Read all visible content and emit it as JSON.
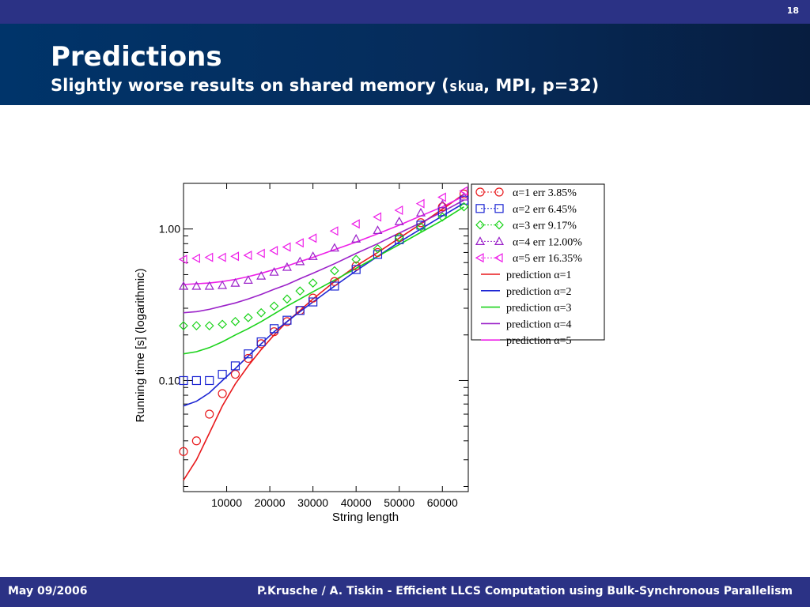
{
  "slide": {
    "number": "18",
    "title": "Predictions",
    "subtitle_prefix": "Slightly worse results on shared memory (",
    "subtitle_code": "skua",
    "subtitle_suffix": ", MPI, p=32)",
    "footer_left": "May 09/2006",
    "footer_right": "P.Krusche / A. Tiskin - Efficient LLCS Computation using Bulk-Synchronous Parallelism",
    "colors": {
      "bar": "#2b3285",
      "header": "#00346a",
      "text": "#ffffff"
    }
  },
  "chart_data": {
    "type": "scatter",
    "title": "",
    "xlabel": "String length",
    "ylabel": "Running time [s] (logarithmic)",
    "x_scale": "linear",
    "y_scale": "log",
    "xlim": [
      0,
      66000
    ],
    "ylim": [
      0.0185,
      2.0
    ],
    "x_ticks": [
      10000,
      20000,
      30000,
      40000,
      50000,
      60000
    ],
    "x_tick_labels": [
      "10000",
      "20000",
      "30000",
      "40000",
      "50000",
      "60000"
    ],
    "y_ticks": [
      0.1,
      1.0
    ],
    "y_tick_labels": [
      "0.10",
      "1.00"
    ],
    "grid": false,
    "legend_position": "top-right",
    "series": [
      {
        "name": "α=1 err 3.85%",
        "kind": "measured",
        "marker": "circle",
        "color": "#e8191c",
        "x": [
          0,
          3000,
          6000,
          9000,
          12000,
          15000,
          18000,
          21000,
          24000,
          27000,
          30000,
          35000,
          40000,
          45000,
          50000,
          55000,
          60000,
          65000
        ],
        "y": [
          0.034,
          0.04,
          0.06,
          0.082,
          0.11,
          0.14,
          0.175,
          0.21,
          0.245,
          0.29,
          0.35,
          0.45,
          0.57,
          0.7,
          0.88,
          1.1,
          1.4,
          1.7
        ]
      },
      {
        "name": "α=2 err 6.45%",
        "kind": "measured",
        "marker": "square",
        "color": "#1c25d3",
        "x": [
          0,
          3000,
          6000,
          9000,
          12000,
          15000,
          18000,
          21000,
          24000,
          27000,
          30000,
          35000,
          40000,
          45000,
          50000,
          55000,
          60000,
          65000
        ],
        "y": [
          0.1,
          0.1,
          0.1,
          0.11,
          0.125,
          0.15,
          0.18,
          0.22,
          0.25,
          0.29,
          0.33,
          0.42,
          0.54,
          0.68,
          0.85,
          1.06,
          1.3,
          1.55
        ]
      },
      {
        "name": "α=3 err 9.17%",
        "kind": "measured",
        "marker": "diamond",
        "color": "#1bd31b",
        "x": [
          0,
          3000,
          6000,
          9000,
          12000,
          15000,
          18000,
          21000,
          24000,
          27000,
          30000,
          35000,
          40000,
          45000,
          50000,
          55000,
          60000,
          65000
        ],
        "y": [
          0.23,
          0.23,
          0.23,
          0.235,
          0.245,
          0.26,
          0.28,
          0.31,
          0.345,
          0.39,
          0.44,
          0.53,
          0.63,
          0.74,
          0.88,
          1.03,
          1.2,
          1.4
        ]
      },
      {
        "name": "α=4 err 12.00%",
        "kind": "measured",
        "marker": "triangle",
        "color": "#9b22c9",
        "x": [
          0,
          3000,
          6000,
          9000,
          12000,
          15000,
          18000,
          21000,
          24000,
          27000,
          30000,
          35000,
          40000,
          45000,
          50000,
          55000,
          60000,
          65000
        ],
        "y": [
          0.42,
          0.42,
          0.42,
          0.425,
          0.44,
          0.46,
          0.49,
          0.52,
          0.56,
          0.61,
          0.66,
          0.75,
          0.86,
          0.98,
          1.12,
          1.28,
          1.45,
          1.63
        ]
      },
      {
        "name": "α=5 err 16.35%",
        "kind": "measured",
        "marker": "triangle-left",
        "color": "#ee1fe8",
        "x": [
          0,
          3000,
          6000,
          9000,
          12000,
          15000,
          18000,
          21000,
          24000,
          27000,
          30000,
          35000,
          40000,
          45000,
          50000,
          55000,
          60000,
          65000
        ],
        "y": [
          0.63,
          0.64,
          0.65,
          0.65,
          0.66,
          0.67,
          0.69,
          0.72,
          0.76,
          0.81,
          0.87,
          0.97,
          1.08,
          1.2,
          1.33,
          1.47,
          1.62,
          1.78
        ]
      },
      {
        "name": "prediction  α=1",
        "kind": "prediction",
        "color": "#e8191c",
        "x": [
          0,
          3000,
          6000,
          9000,
          12000,
          15000,
          18000,
          21000,
          24000,
          27000,
          30000,
          35000,
          40000,
          45000,
          50000,
          55000,
          60000,
          65000
        ],
        "y": [
          0.022,
          0.03,
          0.045,
          0.068,
          0.095,
          0.125,
          0.16,
          0.2,
          0.245,
          0.29,
          0.345,
          0.45,
          0.57,
          0.7,
          0.87,
          1.08,
          1.35,
          1.7
        ]
      },
      {
        "name": "prediction  α=2",
        "kind": "prediction",
        "color": "#1c25d3",
        "x": [
          0,
          3000,
          6000,
          9000,
          12000,
          15000,
          18000,
          21000,
          24000,
          27000,
          30000,
          35000,
          40000,
          45000,
          50000,
          55000,
          60000,
          65000
        ],
        "y": [
          0.068,
          0.073,
          0.083,
          0.1,
          0.12,
          0.145,
          0.175,
          0.21,
          0.245,
          0.285,
          0.33,
          0.42,
          0.53,
          0.66,
          0.82,
          1.0,
          1.22,
          1.48
        ]
      },
      {
        "name": "prediction  α=3",
        "kind": "prediction",
        "color": "#1bd31b",
        "x": [
          0,
          3000,
          6000,
          9000,
          12000,
          15000,
          18000,
          21000,
          24000,
          27000,
          30000,
          35000,
          40000,
          45000,
          50000,
          55000,
          60000,
          65000
        ],
        "y": [
          0.15,
          0.155,
          0.165,
          0.18,
          0.2,
          0.22,
          0.245,
          0.275,
          0.31,
          0.345,
          0.385,
          0.46,
          0.55,
          0.66,
          0.79,
          0.95,
          1.14,
          1.4
        ]
      },
      {
        "name": "prediction  α=4",
        "kind": "prediction",
        "color": "#9b22c9",
        "x": [
          0,
          3000,
          6000,
          9000,
          12000,
          15000,
          18000,
          21000,
          24000,
          27000,
          30000,
          35000,
          40000,
          45000,
          50000,
          55000,
          60000,
          65000
        ],
        "y": [
          0.28,
          0.285,
          0.295,
          0.31,
          0.325,
          0.345,
          0.37,
          0.4,
          0.43,
          0.47,
          0.51,
          0.59,
          0.69,
          0.8,
          0.94,
          1.1,
          1.3,
          1.55
        ]
      },
      {
        "name": "prediction  α=5",
        "kind": "prediction",
        "color": "#ee1fe8",
        "x": [
          0,
          3000,
          6000,
          9000,
          12000,
          15000,
          18000,
          21000,
          24000,
          27000,
          30000,
          35000,
          40000,
          45000,
          50000,
          55000,
          60000,
          65000
        ],
        "y": [
          0.43,
          0.435,
          0.44,
          0.45,
          0.465,
          0.485,
          0.51,
          0.54,
          0.57,
          0.61,
          0.65,
          0.73,
          0.82,
          0.93,
          1.06,
          1.22,
          1.4,
          1.65
        ]
      }
    ]
  }
}
